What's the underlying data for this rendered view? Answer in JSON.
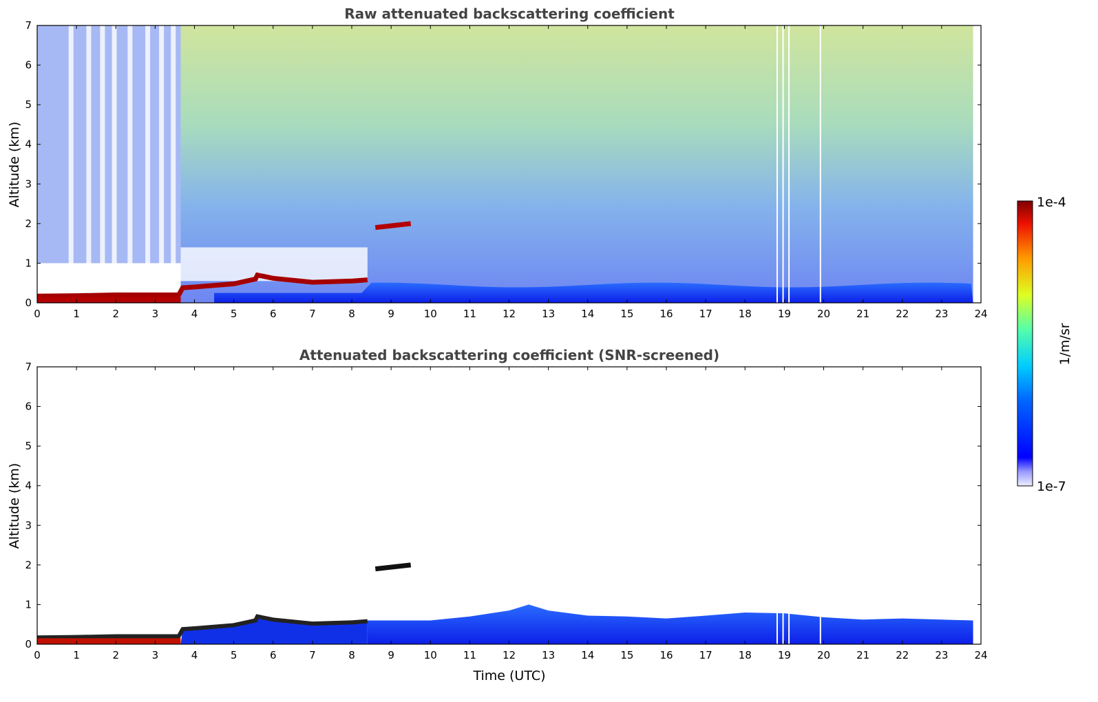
{
  "figure": {
    "cbar_top_label": "1e-4",
    "cbar_bottom_label": "1e-7",
    "cbar_unit": "1/m/sr",
    "x_label": "Time (UTC)"
  },
  "chart_data": [
    {
      "type": "heatmap",
      "title": "Raw attenuated backscattering coefficient",
      "xlabel": "",
      "ylabel": "Altitude (km)",
      "xlim": [
        0,
        24
      ],
      "ylim": [
        0,
        7
      ],
      "x_ticks": [
        "0",
        "1",
        "2",
        "3",
        "4",
        "5",
        "6",
        "7",
        "8",
        "9",
        "10",
        "11",
        "12",
        "13",
        "14",
        "15",
        "16",
        "17",
        "18",
        "19",
        "20",
        "21",
        "22",
        "23",
        "24"
      ],
      "y_ticks": [
        "0",
        "1",
        "2",
        "3",
        "4",
        "5",
        "6",
        "7"
      ],
      "data_end_time": 23.8,
      "boundary_layer": {
        "x": [
          0,
          1,
          2,
          3,
          3.6,
          3.7,
          4,
          5,
          5.55,
          5.6,
          6,
          7,
          8,
          8.4
        ],
        "top_km": [
          0.17,
          0.18,
          0.2,
          0.2,
          0.2,
          0.38,
          0.4,
          0.48,
          0.6,
          0.7,
          0.62,
          0.52,
          0.55,
          0.58
        ]
      },
      "elevated_layer": {
        "x": [
          8.6,
          9.5
        ],
        "y_km": [
          1.9,
          2.0
        ]
      },
      "noise_gaps_x": [
        18.8,
        18.95,
        19.1,
        19.9
      ],
      "colorbar": {
        "scale": "log",
        "min": "1e-7",
        "max": "1e-4",
        "unit": "1/m/sr",
        "colormap": "jet"
      }
    },
    {
      "type": "heatmap",
      "title": "Attenuated backscattering coefficient (SNR-screened)",
      "xlabel": "Time (UTC)",
      "ylabel": "Altitude (km)",
      "xlim": [
        0,
        24
      ],
      "ylim": [
        0,
        7
      ],
      "x_ticks": [
        "0",
        "1",
        "2",
        "3",
        "4",
        "5",
        "6",
        "7",
        "8",
        "9",
        "10",
        "11",
        "12",
        "13",
        "14",
        "15",
        "16",
        "17",
        "18",
        "19",
        "20",
        "21",
        "22",
        "23",
        "24"
      ],
      "y_ticks": [
        "0",
        "1",
        "2",
        "3",
        "4",
        "5",
        "6",
        "7"
      ],
      "data_end_time": 23.8,
      "aerosol_top": {
        "x": [
          8.4,
          10,
          11,
          12,
          12.5,
          13,
          14,
          15,
          16,
          17,
          18,
          19,
          20,
          21,
          22,
          23,
          23.8
        ],
        "top_km": [
          0.6,
          0.6,
          0.7,
          0.85,
          1.0,
          0.85,
          0.72,
          0.7,
          0.65,
          0.72,
          0.8,
          0.78,
          0.68,
          0.62,
          0.65,
          0.62,
          0.6
        ]
      },
      "colorbar": {
        "scale": "log",
        "min": "1e-7",
        "max": "1e-4",
        "unit": "1/m/sr",
        "colormap": "jet"
      }
    }
  ]
}
